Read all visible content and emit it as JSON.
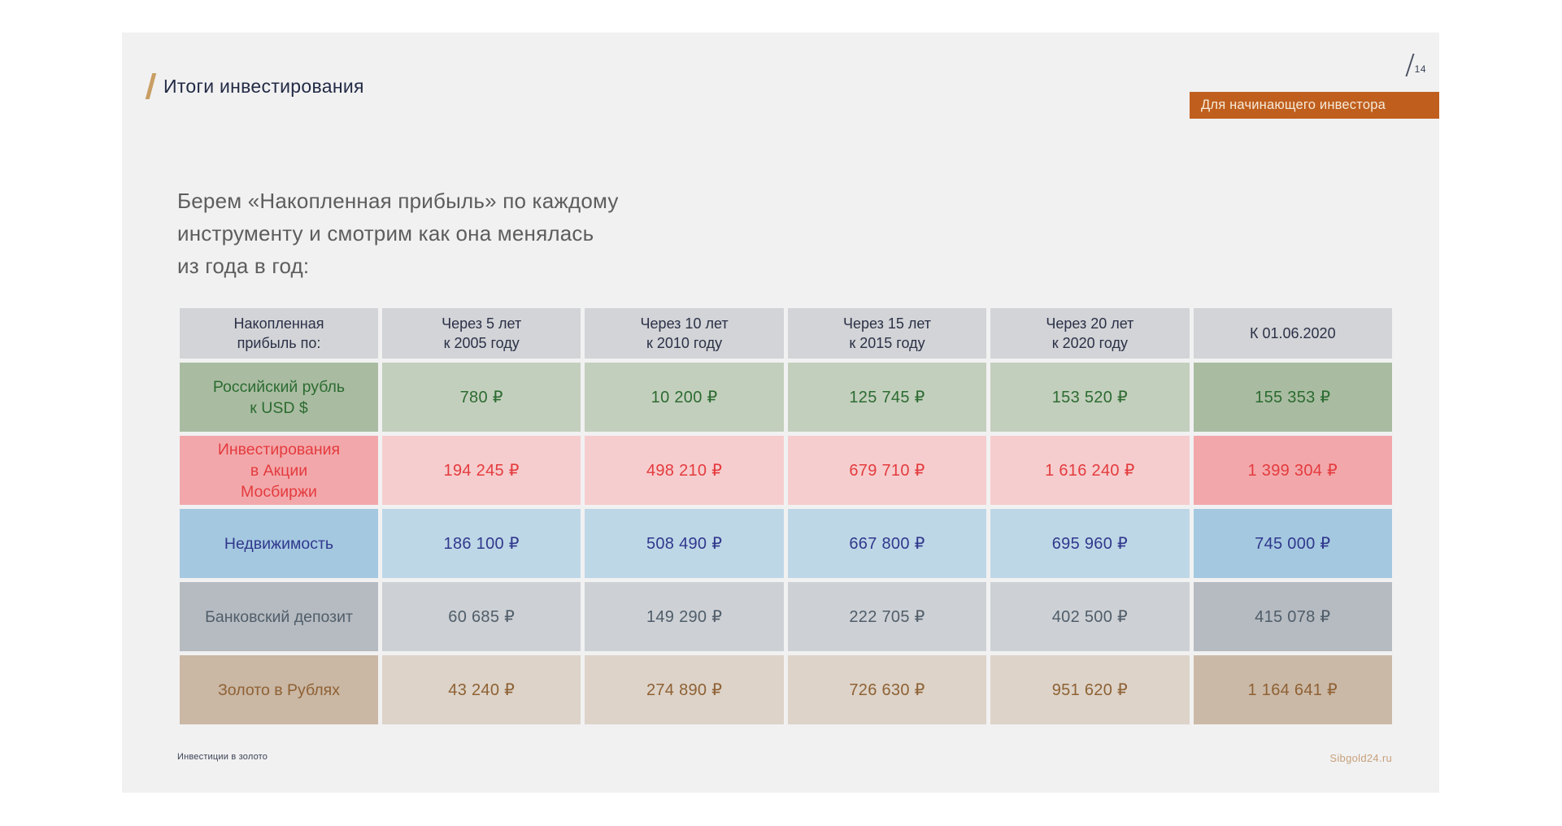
{
  "slide": {
    "page_number": "14",
    "title": "Итоги инвестирования",
    "badge": "Для начинающего инвестора",
    "intro": "Берем «Накопленная прибыль» по каждому\nинструменту и смотрим как она менялась\nиз года в год:",
    "footer": {
      "left": "Инвестиции в золото",
      "right": "Sibgold24.ru"
    }
  },
  "table": {
    "columns": [
      "Накопленная\nприбыль по:",
      "Через 5 лет\nк 2005 году",
      "Через 10 лет\nк 2010 году",
      "Через 15 лет\nк 2015 году",
      "Через 20 лет\nк 2020 году",
      "К 01.06.2020"
    ],
    "rows": [
      {
        "label": "Российский рубль\nк USD $",
        "theme": "green",
        "values": [
          "780 ₽",
          "10 200 ₽",
          "125 745 ₽",
          "153 520 ₽",
          "155 353 ₽"
        ]
      },
      {
        "label": "Инвестирования\nв Акции\nМосбиржи",
        "theme": "red",
        "values": [
          "194 245 ₽",
          "498 210 ₽",
          "679 710 ₽",
          "1 616 240 ₽",
          "1 399 304 ₽"
        ]
      },
      {
        "label": "Недвижимость",
        "theme": "blue",
        "values": [
          "186 100 ₽",
          "508 490 ₽",
          "667 800 ₽",
          "695 960 ₽",
          "745 000 ₽"
        ]
      },
      {
        "label": "Банковский депозит",
        "theme": "gray",
        "values": [
          "60 685 ₽",
          "149 290 ₽",
          "222 705 ₽",
          "402 500 ₽",
          "415 078 ₽"
        ]
      },
      {
        "label": "Золото в Рублях",
        "theme": "gold",
        "values": [
          "43 240 ₽",
          "274 890 ₽",
          "726 630 ₽",
          "951 620 ₽",
          "1 164 641 ₽"
        ]
      }
    ]
  },
  "colors": {
    "slide_background": "#f1f1f2",
    "badge_background": "#c05f1d",
    "accent_gold_slash": "#c99e63",
    "header_cell_background": "#d2d4d7",
    "header_text": "#2b3147",
    "title_text": "#232b45",
    "intro_text": "#5d5d5d",
    "footer_link": "#c7a17c",
    "row_green": {
      "label_bg": "#a9bca1",
      "data_bg": "#c3cfbd",
      "text": "#2c6b31"
    },
    "row_red": {
      "label_bg": "#f2a8ab",
      "data_bg": "#f6cdce",
      "text": "#e43b3e"
    },
    "row_blue": {
      "label_bg": "#a5c8e1",
      "data_bg": "#bed7e7",
      "text": "#30388c"
    },
    "row_gray": {
      "label_bg": "#b5bbc1",
      "data_bg": "#cdd1d5",
      "text": "#505d69"
    },
    "row_gold": {
      "label_bg": "#cab7a4",
      "data_bg": "#ddd3c8",
      "text": "#8e6134"
    }
  }
}
